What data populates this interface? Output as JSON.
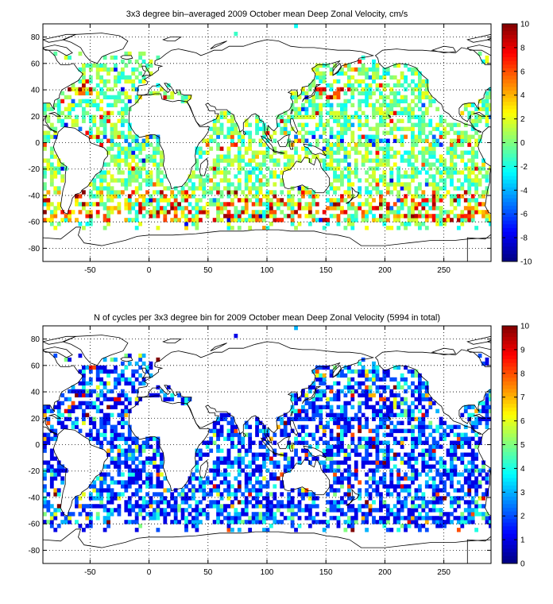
{
  "chart_data": [
    {
      "type": "heatmap",
      "title": "3x3 degree bin–averaged 2009 October mean Deep Zonal Velocity, cm/s",
      "xlabel": "",
      "ylabel": "",
      "xlim": [
        -90,
        290
      ],
      "ylim": [
        -90,
        90
      ],
      "x_ticks": [
        -50,
        0,
        50,
        100,
        150,
        200,
        250
      ],
      "y_ticks": [
        80,
        60,
        40,
        20,
        0,
        -20,
        -40,
        -60,
        -80
      ],
      "grid": true,
      "bin_size_deg": 3,
      "colorbar": {
        "range": [
          -10,
          10
        ],
        "ticks": [
          10,
          8,
          6,
          4,
          2,
          0,
          -2,
          -4,
          -6,
          -8,
          -10
        ],
        "colormap": "jet"
      },
      "cell_value_range": [
        -10,
        10
      ],
      "cell_value_distribution": "mostly between -3 and 3 cm/s; strong positive (red) values along the Antarctic Circumpolar Current near 45-60S and in the Gulf Stream and Kuroshio"
    },
    {
      "type": "heatmap",
      "title": "N of cycles per 3x3 degree bin for 2009 October mean Deep Zonal Velocity (5994 in total)",
      "xlabel": "",
      "ylabel": "",
      "xlim": [
        -90,
        290
      ],
      "ylim": [
        -90,
        90
      ],
      "x_ticks": [
        -50,
        0,
        50,
        100,
        150,
        200,
        250
      ],
      "y_ticks": [
        80,
        60,
        40,
        20,
        0,
        -20,
        -40,
        -60,
        -80
      ],
      "grid": true,
      "bin_size_deg": 3,
      "total_cycles": 5994,
      "colorbar": {
        "range": [
          0,
          10
        ],
        "ticks": [
          10,
          9,
          8,
          7,
          6,
          5,
          4,
          3,
          2,
          1,
          0
        ],
        "colormap": "jet"
      },
      "cell_value_range": [
        1,
        10
      ],
      "cell_value_distribution": "mostly 1-4 cycles per bin, occasional bins with 6-10"
    }
  ]
}
